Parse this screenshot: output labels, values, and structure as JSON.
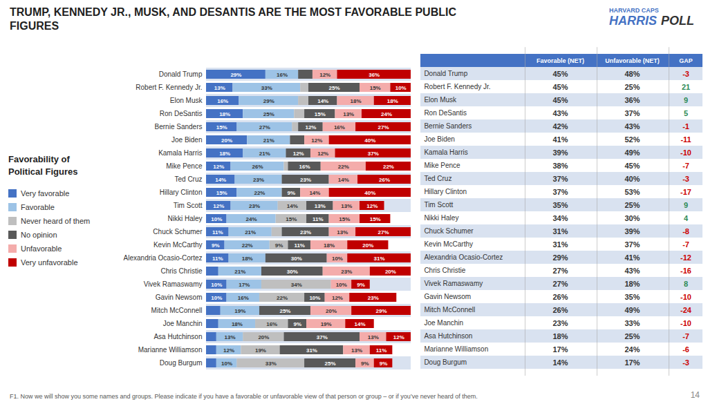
{
  "chart_data": [
    {
      "type": "bar",
      "orientation": "horizontal",
      "stacked": true,
      "title": "TRUMP, KENNEDY JR., MUSK, AND DESANTIS ARE THE MOST FAVORABLE PUBLIC FIGURES",
      "categories": [
        "Donald Trump",
        "Robert F. Kennedy Jr.",
        "Elon Musk",
        "Ron DeSantis",
        "Bernie Sanders",
        "Joe Biden",
        "Kamala Harris",
        "Mike Pence",
        "Ted Cruz",
        "Hillary Clinton",
        "Tim Scott",
        "Nikki Haley",
        "Chuck Schumer",
        "Kevin McCarthy",
        "Alexandria Ocasio-Cortez",
        "Chris Christie",
        "Vivek Ramaswamy",
        "Gavin Newsom",
        "Mitch McConnell",
        "Joe Manchin",
        "Asa Hutchinson",
        "Marianne Williamson",
        "Doug Burgum"
      ],
      "series": [
        {
          "name": "Very favorable",
          "color": "#4472C4",
          "values": [
            29,
            13,
            16,
            18,
            15,
            20,
            18,
            12,
            14,
            15,
            12,
            10,
            11,
            9,
            11,
            6,
            10,
            10,
            7,
            6,
            5,
            5,
            5
          ],
          "value_labels": [
            "29%",
            "13%",
            "16%",
            "18%",
            "15%",
            "20%",
            "18%",
            "12%",
            "14%",
            "15%",
            "12%",
            "10%",
            "11%",
            "9%",
            "11%",
            null,
            "10%",
            "10%",
            null,
            null,
            null,
            null,
            null
          ]
        },
        {
          "name": "Favorable",
          "color": "#9DC3E6",
          "values": [
            16,
            33,
            29,
            25,
            27,
            21,
            21,
            26,
            23,
            22,
            23,
            24,
            21,
            22,
            18,
            21,
            17,
            16,
            19,
            18,
            13,
            12,
            10
          ],
          "value_labels": [
            "16%",
            "33%",
            "29%",
            "25%",
            "27%",
            "21%",
            "21%",
            "26%",
            "23%",
            "22%",
            "23%",
            "24%",
            "21%",
            "22%",
            "18%",
            "21%",
            "17%",
            "16%",
            "19%",
            "18%",
            "13%",
            "12%",
            "10%"
          ]
        },
        {
          "name": "Never heard of them",
          "color": "#BFBFBF",
          "values": [
            0,
            4,
            5,
            5,
            3,
            0,
            0,
            2,
            0,
            0,
            14,
            15,
            5,
            9,
            0,
            0,
            34,
            22,
            0,
            16,
            20,
            19,
            33
          ],
          "value_labels": [
            null,
            null,
            null,
            null,
            null,
            null,
            null,
            null,
            null,
            null,
            "14%",
            "15%",
            null,
            "9%",
            null,
            null,
            "34%",
            "22%",
            null,
            "16%",
            "20%",
            "19%",
            "33%"
          ]
        },
        {
          "name": "No opinion",
          "color": "#595959",
          "values": [
            7,
            25,
            14,
            15,
            12,
            7,
            12,
            16,
            23,
            9,
            13,
            11,
            23,
            11,
            30,
            30,
            0,
            10,
            25,
            9,
            37,
            31,
            25
          ],
          "value_labels": [
            null,
            "25%",
            "14%",
            "15%",
            "12%",
            null,
            "12%",
            "16%",
            "23%",
            "9%",
            "13%",
            "11%",
            "23%",
            "11%",
            "30%",
            "30%",
            null,
            "10%",
            "25%",
            "9%",
            "37%",
            "31%",
            "25%"
          ]
        },
        {
          "name": "Unfavorable",
          "color": "#F4ACAB",
          "values": [
            12,
            15,
            18,
            13,
            16,
            12,
            12,
            22,
            14,
            14,
            13,
            15,
            13,
            18,
            10,
            23,
            10,
            12,
            20,
            19,
            13,
            13,
            9
          ],
          "value_labels": [
            "12%",
            "15%",
            "18%",
            "13%",
            "16%",
            "12%",
            "12%",
            "22%",
            "14%",
            "14%",
            "13%",
            "15%",
            "13%",
            "18%",
            "10%",
            "23%",
            "10%",
            "12%",
            "20%",
            "19%",
            "13%",
            "13%",
            "9%"
          ]
        },
        {
          "name": "Very unfavorable",
          "color": "#C00000",
          "values": [
            36,
            10,
            18,
            24,
            27,
            40,
            37,
            22,
            26,
            40,
            12,
            15,
            27,
            20,
            31,
            20,
            9,
            23,
            29,
            14,
            12,
            11,
            9
          ],
          "value_labels": [
            "36%",
            "10%",
            "18%",
            "24%",
            "27%",
            "40%",
            "37%",
            "22%",
            "26%",
            "40%",
            "12%",
            "15%",
            "27%",
            "20%",
            "31%",
            "20%",
            "9%",
            "23%",
            "29%",
            "14%",
            "12%",
            "11%",
            "9%"
          ]
        }
      ],
      "xlim": [
        0,
        100
      ],
      "tick_labels": "y",
      "grid": false,
      "legend": "left",
      "data_labels": true,
      "annotations": [
        "Favorability of Political Figures",
        "HARVARD CAPS",
        "HARRIS",
        "POLL",
        "F1. Now we will show you some names and groups. Please indicate if you have a favorable or unfavorable view of that person or group – or if you’ve never heard of them.",
        "14"
      ]
    },
    {
      "type": "table",
      "categories": [
        "Donald Trump",
        "Robert F. Kennedy Jr.",
        "Elon Musk",
        "Ron DeSantis",
        "Bernie Sanders",
        "Joe Biden",
        "Kamala Harris",
        "Mike Pence",
        "Ted Cruz",
        "Hillary Clinton",
        "Tim Scott",
        "Nikki Haley",
        "Chuck Schumer",
        "Kevin McCarthy",
        "Alexandria Ocasio-Cortez",
        "Chris Christie",
        "Vivek Ramaswamy",
        "Gavin Newsom",
        "Mitch McConnell",
        "Joe Manchin",
        "Asa Hutchinson",
        "Marianne Williamson",
        "Doug Burgum"
      ],
      "series": [
        {
          "name": "Favorable (NET)",
          "values": [
            45,
            45,
            45,
            43,
            42,
            41,
            39,
            38,
            37,
            37,
            35,
            34,
            31,
            31,
            29,
            27,
            27,
            26,
            26,
            23,
            18,
            17,
            14
          ],
          "value_labels": [
            "45%",
            "45%",
            "45%",
            "43%",
            "42%",
            "41%",
            "39%",
            "38%",
            "37%",
            "37%",
            "35%",
            "34%",
            "31%",
            "31%",
            "29%",
            "27%",
            "27%",
            "26%",
            "26%",
            "23%",
            "18%",
            "17%",
            "14%"
          ]
        },
        {
          "name": "Unfavorable (NET)",
          "values": [
            48,
            25,
            36,
            37,
            43,
            52,
            49,
            45,
            40,
            53,
            25,
            30,
            39,
            37,
            41,
            43,
            18,
            35,
            49,
            33,
            25,
            24,
            17
          ],
          "value_labels": [
            "48%",
            "25%",
            "36%",
            "37%",
            "43%",
            "52%",
            "49%",
            "45%",
            "40%",
            "53%",
            "25%",
            "30%",
            "39%",
            "37%",
            "41%",
            "43%",
            "18%",
            "35%",
            "49%",
            "33%",
            "25%",
            "24%",
            "17%"
          ]
        },
        {
          "name": "GAP",
          "values": [
            -3,
            21,
            9,
            5,
            -1,
            -11,
            -10,
            -7,
            -3,
            -17,
            9,
            4,
            -8,
            -7,
            -12,
            -16,
            8,
            -10,
            -24,
            -10,
            -7,
            -6,
            -3
          ],
          "colors": [
            "#CC0000",
            "#2E8B57",
            "#2E8B57",
            "#2E8B57",
            "#CC0000",
            "#CC0000",
            "#CC0000",
            "#CC0000",
            "#CC0000",
            "#CC0000",
            "#2E8B57",
            "#2E8B57",
            "#CC0000",
            "#CC0000",
            "#CC0000",
            "#CC0000",
            "#2E8B57",
            "#CC0000",
            "#CC0000",
            "#CC0000",
            "#CC0000",
            "#CC0000",
            "#CC0000"
          ]
        }
      ]
    }
  ]
}
